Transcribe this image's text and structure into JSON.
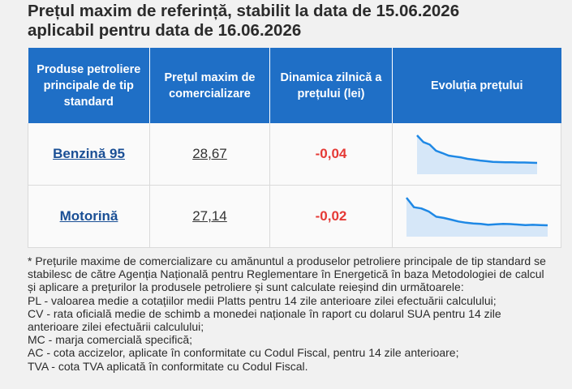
{
  "title_line1": "Prețul maxim de referință, stabilit la data de 15.06.2026",
  "title_line2": "aplicabil pentru data de 16.06.2026",
  "table": {
    "headers": [
      "Produse petroliere principale de tip standard",
      "Prețul maxim de comercializare",
      "Dinamica zilnică a prețului (lei)",
      "Evoluția prețului"
    ],
    "rows": [
      {
        "product": "Benzină 95",
        "price": "28,67",
        "change": "-0,04",
        "trend": [
          30.1,
          29.75,
          29.62,
          29.3,
          29.18,
          29.05,
          29.0,
          28.95,
          28.88,
          28.84,
          28.79,
          28.76,
          28.72,
          28.71,
          28.7,
          28.7,
          28.69,
          28.69,
          28.68,
          28.67
        ]
      },
      {
        "product": "Motorină",
        "price": "27,14",
        "change": "-0,02",
        "trend": [
          28.3,
          27.9,
          27.85,
          27.72,
          27.5,
          27.45,
          27.38,
          27.3,
          27.25,
          27.22,
          27.2,
          27.16,
          27.18,
          27.2,
          27.19,
          27.17,
          27.15,
          27.16,
          27.15,
          27.14
        ]
      }
    ],
    "trend_color": "#1e88e5",
    "trend_fill": "#d6e7f8"
  },
  "notes": [
    "* Prețurile maxime de comercializare cu amănuntul a produselor petroliere principale de tip standard se stabilesc de către Agenția Națională pentru Reglementare în Energetică în baza Metodologiei de calcul și aplicare a prețurilor la produsele petroliere și sunt calculate reieșind din următoarele:",
    "PL - valoarea medie a cotațiilor medii Platts pentru 14 zile anterioare zilei efectuării calculului;",
    "CV - rata oficială medie de schimb a monedei naționale în raport cu dolarul SUA pentru 14 zile anterioare zilei efectuării calculului;",
    "MC - marja comercială specifică;",
    "AC - cota accizelor, aplicate în conformitate cu Codul Fiscal, pentru 14 zile anterioare;",
    "TVA - cota TVA aplicată în conformitate cu Codul Fiscal."
  ]
}
